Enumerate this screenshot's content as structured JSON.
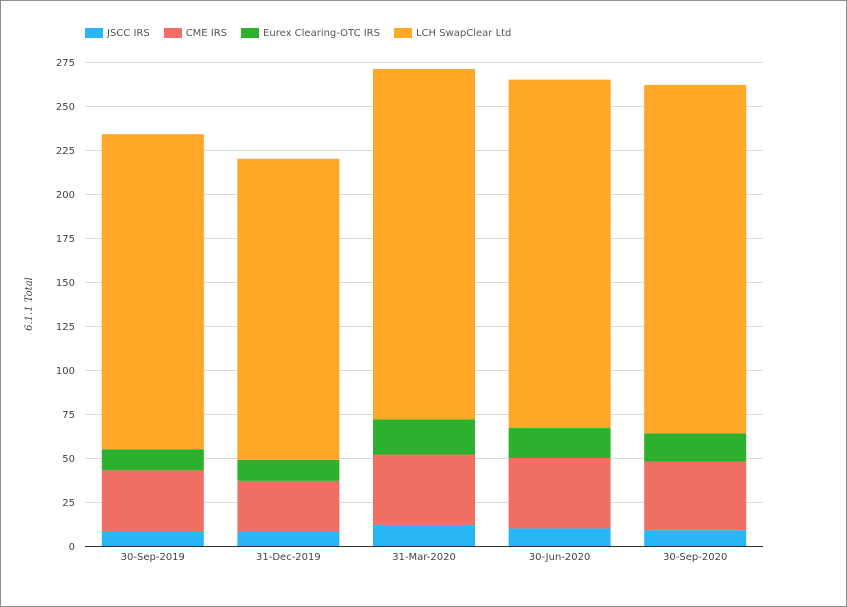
{
  "chart_data": {
    "type": "bar",
    "stacked": true,
    "categories": [
      "30-Sep-2019",
      "31-Dec-2019",
      "31-Mar-2020",
      "30-Jun-2020",
      "30-Sep-2020"
    ],
    "series": [
      {
        "name": "JSCC IRS",
        "color": "#29b6f6",
        "values": [
          8,
          8,
          12,
          10,
          9
        ]
      },
      {
        "name": "CME IRS",
        "color": "#f06e62",
        "values": [
          35,
          29,
          40,
          40,
          39
        ]
      },
      {
        "name": "Eurex Clearing-OTC IRS",
        "color": "#2db02d",
        "values": [
          12,
          12,
          20,
          17,
          16
        ]
      },
      {
        "name": "LCH SwapClear Ltd",
        "color": "#ffa726",
        "values": [
          179,
          171,
          199,
          198,
          198
        ]
      }
    ],
    "ylabel": "6.1.1 Total",
    "xlabel": "",
    "ylim": [
      0,
      275
    ],
    "yticks": [
      0,
      25,
      50,
      75,
      100,
      125,
      150,
      175,
      200,
      225,
      250,
      275
    ],
    "grid": true,
    "legend": "top-left"
  }
}
